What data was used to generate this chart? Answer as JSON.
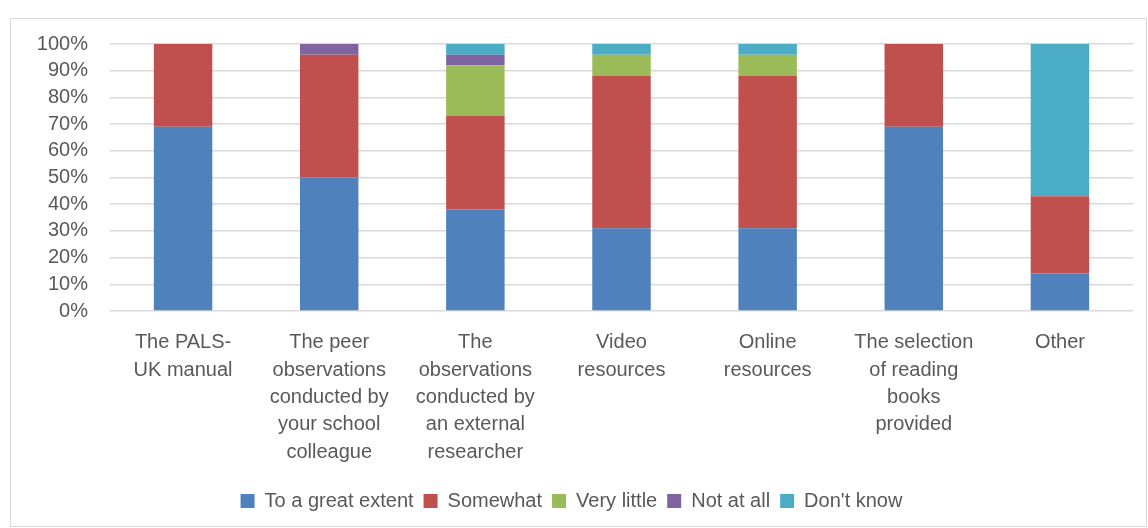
{
  "chart_data": {
    "type": "bar",
    "stacked": true,
    "categories": [
      "The PALS-UK manual",
      "The peer observations conducted by your school colleague",
      "The observations conducted by an external researcher",
      "Video resources",
      "Online resources",
      "The selection of reading books provided",
      "Other"
    ],
    "series": [
      {
        "name": "To a great extent",
        "color": "#4f81bd",
        "values": [
          69,
          50,
          38,
          31,
          31,
          69,
          14
        ]
      },
      {
        "name": "Somewhat",
        "color": "#c0504d",
        "values": [
          31,
          46,
          35,
          57,
          57,
          31,
          29
        ]
      },
      {
        "name": "Very little",
        "color": "#9bbb59",
        "values": [
          null,
          null,
          19,
          8,
          8,
          null,
          null
        ]
      },
      {
        "name": "Not at all",
        "color": "#8064a2",
        "values": [
          null,
          4,
          4,
          null,
          null,
          null,
          null
        ]
      },
      {
        "name": "Don't know",
        "color": "#4bacc6",
        "values": [
          null,
          null,
          4,
          4,
          4,
          null,
          57
        ]
      }
    ],
    "ylim": [
      0,
      100
    ],
    "yticks": [
      {
        "value": 0,
        "label": "0%"
      },
      {
        "value": 10,
        "label": "10%"
      },
      {
        "value": 20,
        "label": "20%"
      },
      {
        "value": 30,
        "label": "30%"
      },
      {
        "value": 40,
        "label": "40%"
      },
      {
        "value": 50,
        "label": "50%"
      },
      {
        "value": 60,
        "label": "60%"
      },
      {
        "value": 70,
        "label": "70%"
      },
      {
        "value": 80,
        "label": "80%"
      },
      {
        "value": 90,
        "label": "90%"
      },
      {
        "value": 100,
        "label": "100%"
      }
    ],
    "grid": "y",
    "legend": "bottom"
  }
}
